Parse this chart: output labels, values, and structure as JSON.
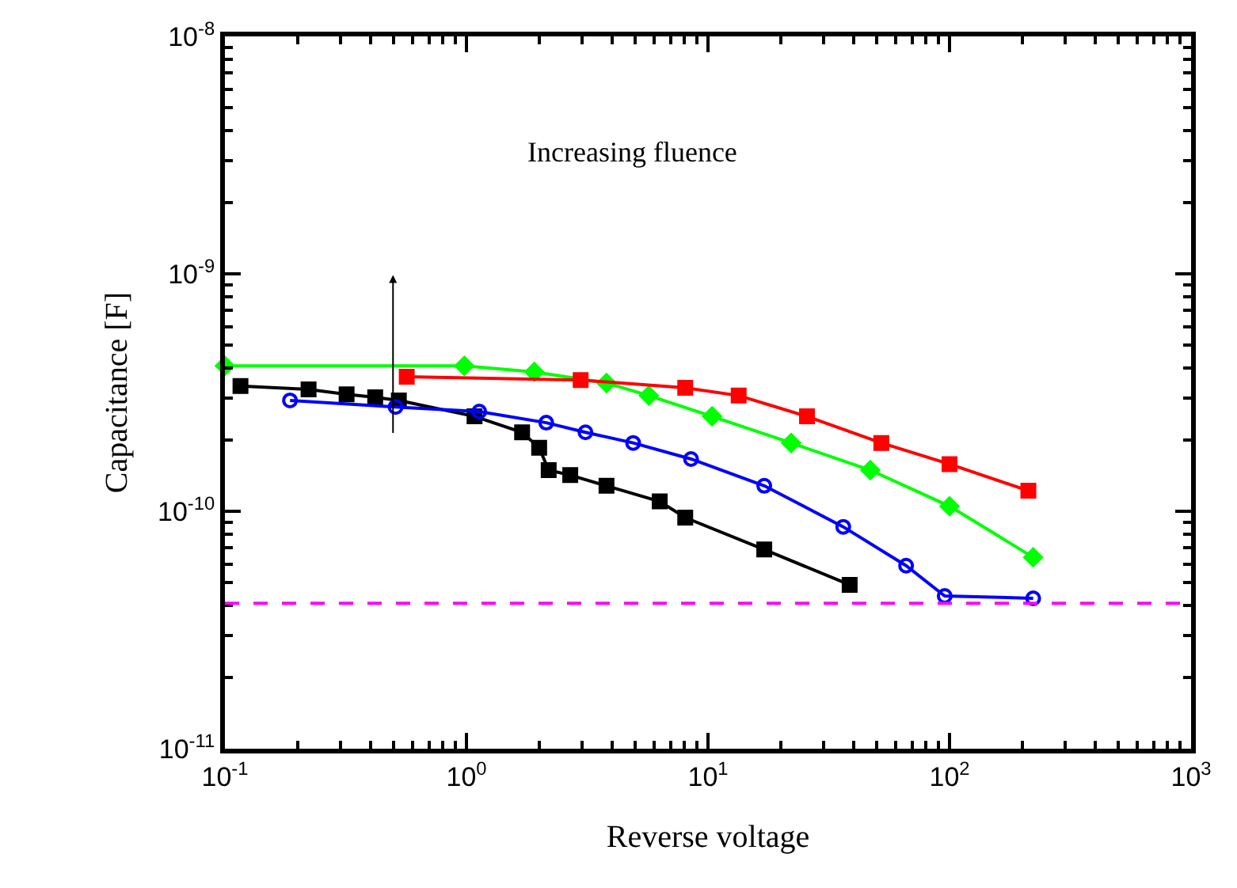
{
  "chart_data": {
    "type": "line",
    "xlabel": "Reverse voltage",
    "ylabel": "Capacitance [F]",
    "log": "xy",
    "annotations": [
      "Increasing fluence"
    ],
    "xlim": [
      0.1,
      1000
    ],
    "ylim": [
      1e-11,
      1e-08
    ],
    "xticks": [
      {
        "value": 0.1,
        "label": "10$^{-1}$"
      },
      {
        "value": 1,
        "label": "10$^{0}$"
      },
      {
        "value": 10,
        "label": "10$^{1}$"
      },
      {
        "value": 100,
        "label": "10$^{2}$"
      },
      {
        "value": 1000,
        "label": "10$^{3}$"
      }
    ],
    "yticks": [
      {
        "value": 1e-11,
        "label": "10$^{-11}$"
      },
      {
        "value": 1e-10,
        "label": "10$^{-10}$"
      },
      {
        "value": 1e-09,
        "label": "10$^{-9}$"
      },
      {
        "value": 1e-08,
        "label": "10$^{-8}$"
      }
    ],
    "ref_lines": [
      {
        "axis": "y",
        "value": 4.1e-11,
        "label": null,
        "color": "#ff00ff",
        "line_style": "dashed"
      }
    ],
    "series": [
      {
        "color": "#000000",
        "marker": "square",
        "x": [
          0.116,
          0.222,
          0.319,
          0.419,
          0.525,
          1.08,
          1.7,
          2.0,
          2.19,
          2.69,
          3.8,
          6.31,
          8.05,
          17.1,
          38.6
        ],
        "values": [
          3.37e-10,
          3.26e-10,
          3.11e-10,
          3.02e-10,
          2.93e-10,
          2.51e-10,
          2.15e-10,
          1.85e-10,
          1.49e-10,
          1.42e-10,
          1.28e-10,
          1.1e-10,
          9.4e-11,
          6.9e-11,
          4.9e-11
        ]
      },
      {
        "color": "#0000ff",
        "marker": "circle",
        "x": [
          0.186,
          0.509,
          1.13,
          2.14,
          3.11,
          4.9,
          8.51,
          17.1,
          36.3,
          66.1,
          95.5,
          222
        ],
        "values": [
          2.93e-10,
          2.75e-10,
          2.63e-10,
          2.36e-10,
          2.15e-10,
          1.94e-10,
          1.66e-10,
          1.28e-10,
          8.6e-11,
          5.9e-11,
          4.4e-11,
          4.3e-11
        ]
      },
      {
        "color": "#00ff00",
        "marker": "diamond",
        "x": [
          0.1,
          0.98,
          1.91,
          3.8,
          5.69,
          10.4,
          22.1,
          47.0,
          100,
          222
        ],
        "values": [
          4.1e-10,
          4.1e-10,
          3.86e-10,
          3.47e-10,
          3.07e-10,
          2.51e-10,
          1.94e-10,
          1.49e-10,
          1.05e-10,
          6.4e-11
        ]
      },
      {
        "color": "#ff0000",
        "marker": "square",
        "x": [
          0.566,
          2.97,
          8.05,
          13.4,
          25.7,
          52.2,
          100,
          212
        ],
        "values": [
          3.69e-10,
          3.57e-10,
          3.31e-10,
          3.07e-10,
          2.51e-10,
          1.94e-10,
          1.58e-10,
          1.22e-10
        ]
      }
    ]
  }
}
